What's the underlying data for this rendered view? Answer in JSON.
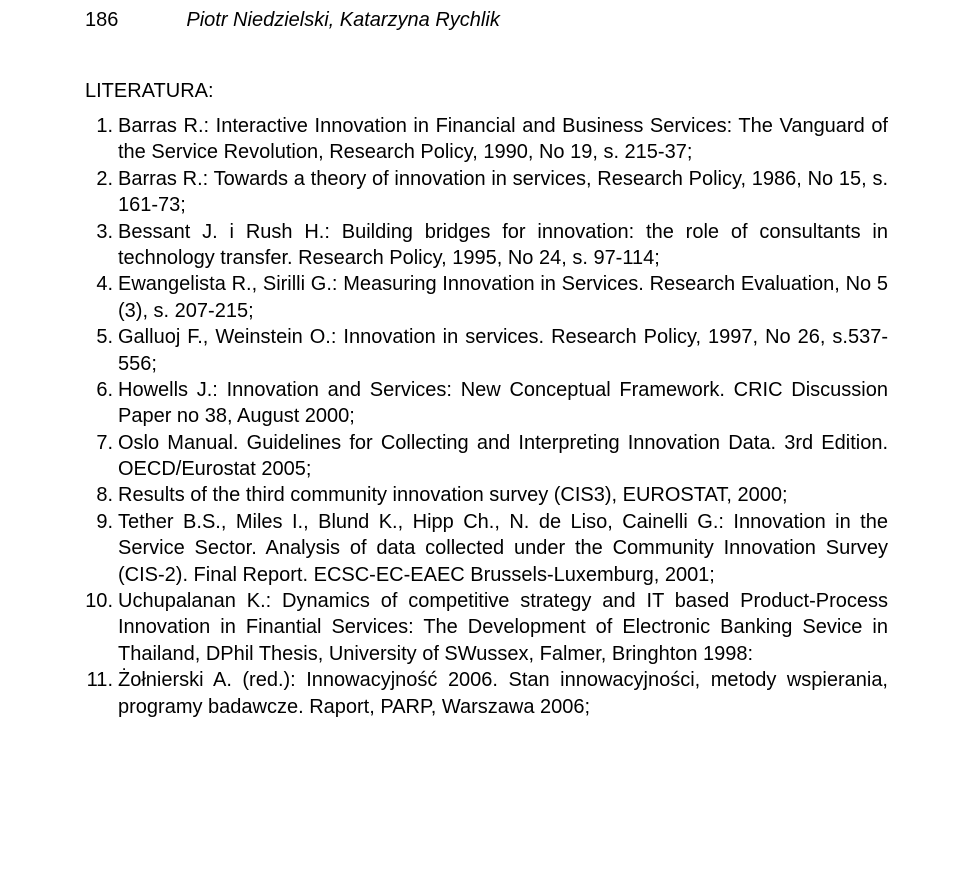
{
  "header": {
    "page_number": "186",
    "authors": "Piotr Niedzielski, Katarzyna Rychlik"
  },
  "section_title": "LITERATURA:",
  "references": [
    "Barras R.: Interactive Innovation in Financial and Business Services: The Vanguard of the Service Revolution, Research Policy, 1990, No 19, s. 215-37;",
    "Barras R.: Towards a theory of innovation in services, Research Policy, 1986, No 15, s. 161-73;",
    "Bessant J. i Rush H.: Building bridges for innovation: the role of consultants in technology transfer. Research Policy, 1995, No 24, s. 97-114;",
    "Ewangelista R., Sirilli G.: Measuring Innovation in Services. Research Evaluation, No 5 (3), s. 207-215;",
    "Galluoj F., Weinstein O.: Innovation in services. Research Policy, 1997, No 26, s.537-556;",
    "Howells J.: Innovation and Services: New Conceptual Framework. CRIC Discussion Paper no 38, August 2000;",
    "Oslo Manual. Guidelines for Collecting and Interpreting Innovation Data. 3rd Edition. OECD/Eurostat 2005;",
    "Results of the third community innovation survey (CIS3), EUROSTAT, 2000;",
    "Tether B.S., Miles I., Blund K., Hipp Ch., N. de Liso, Cainelli G.: Innovation in the Service Sector. Analysis of data collected under the Community Innovation Survey (CIS-2). Final Report. ECSC-EC-EAEC Brussels-Luxemburg, 2001;",
    "Uchupalanan K.: Dynamics of competitive strategy and IT based Product-Process Innovation in Finantial Services: The Development of Electronic Banking Sevice in Thailand, DPhil Thesis, University of SWussex, Falmer, Bringhton 1998:",
    "Żołnierski A. (red.): Innowacyjność 2006. Stan innowacyjności, metody wspierania, programy badawcze. Raport, PARP, Warszawa 2006;"
  ]
}
